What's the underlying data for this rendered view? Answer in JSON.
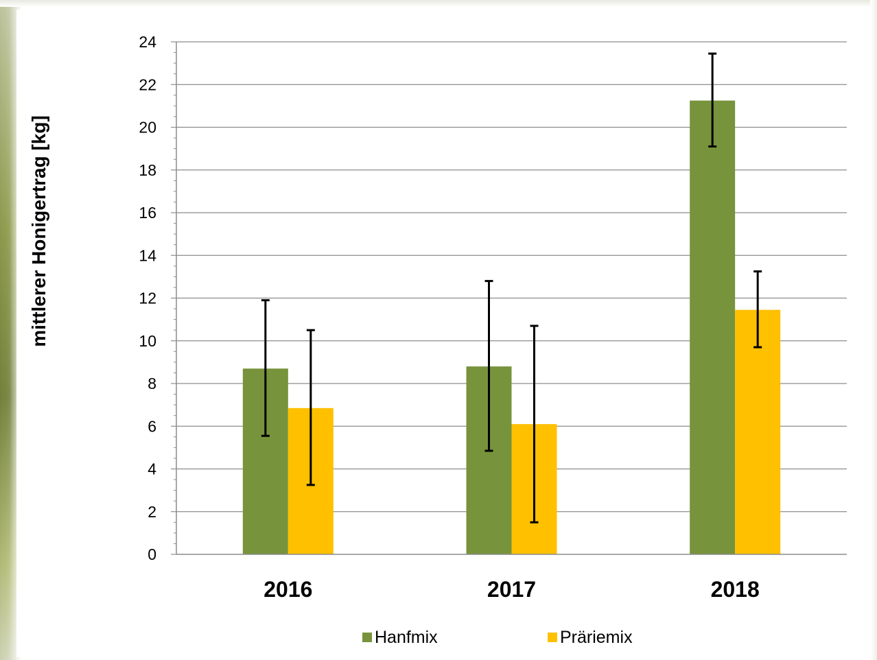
{
  "chart_data": {
    "type": "bar",
    "categories": [
      "2016",
      "2017",
      "2018"
    ],
    "series": [
      {
        "name": "Hanfmix",
        "color": "#77933c",
        "values": [
          8.7,
          8.8,
          21.25
        ],
        "error_low": [
          5.55,
          4.85,
          19.1
        ],
        "error_high": [
          11.9,
          12.8,
          23.45
        ]
      },
      {
        "name": "Präriemix",
        "color": "#ffc000",
        "values": [
          6.85,
          6.1,
          11.45
        ],
        "error_low": [
          3.25,
          1.5,
          9.7
        ],
        "error_high": [
          10.5,
          10.7,
          13.25
        ]
      }
    ],
    "title": "",
    "xlabel": "",
    "ylabel": "mittlerer Honigertrag [kg]",
    "ylim": [
      0,
      24
    ],
    "yticks": [
      "0",
      "2",
      "4",
      "6",
      "8",
      "10",
      "12",
      "14",
      "16",
      "18",
      "20",
      "22",
      "24"
    ],
    "grid": true,
    "legend_position": "bottom"
  }
}
